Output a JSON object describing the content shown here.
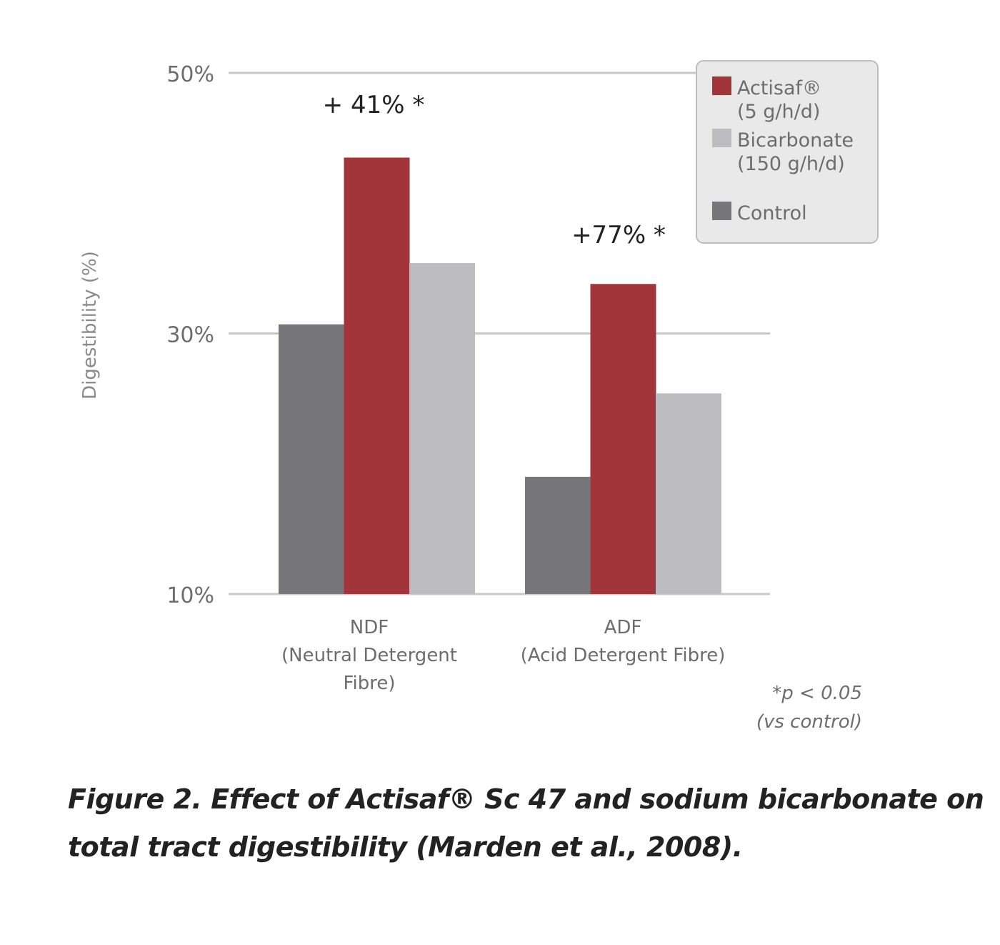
{
  "chart_data": {
    "type": "bar",
    "ylabel": "Digestibility (%)",
    "ylim": [
      10,
      50
    ],
    "yticks": [
      "10%",
      "30%",
      "50%"
    ],
    "ytick_values": [
      10,
      30,
      50
    ],
    "grid": true,
    "legend_placement": "top-right",
    "categories": [
      {
        "lines": [
          "NDF",
          "(Neutral Detergent",
          "Fibre)"
        ]
      },
      {
        "lines": [
          "ADF",
          "(Acid Detergent Fibre)"
        ]
      }
    ],
    "series": [
      {
        "name": "Control",
        "color": "#77767b",
        "values": [
          30.7,
          19.0
        ]
      },
      {
        "name": "Actisaf® (5 g/h/d)",
        "color": "#a23539",
        "values": [
          43.5,
          33.8
        ]
      },
      {
        "name": "Bicarbonate (150 g/h/d)",
        "color": "#bdbcc1",
        "values": [
          35.4,
          25.4
        ]
      }
    ],
    "legend": [
      {
        "lines": [
          "Actisaf®",
          "(5 g/h/d)"
        ],
        "color": "#a23539"
      },
      {
        "lines": [
          "Bicarbonate",
          "(150 g/h/d)"
        ],
        "color": "#bdbcc1"
      },
      {
        "lines": [
          "Control"
        ],
        "color": "#77767b"
      }
    ],
    "annotations": [
      "+ 41% *",
      "+77% *"
    ],
    "footnote": [
      "*p  < 0.05",
      "(vs control)"
    ]
  },
  "caption": "Figure 2. Effect of Actisaf® Sc 47 and sodium bicarbonate on total tract digestibility (Marden et al., 2008)."
}
